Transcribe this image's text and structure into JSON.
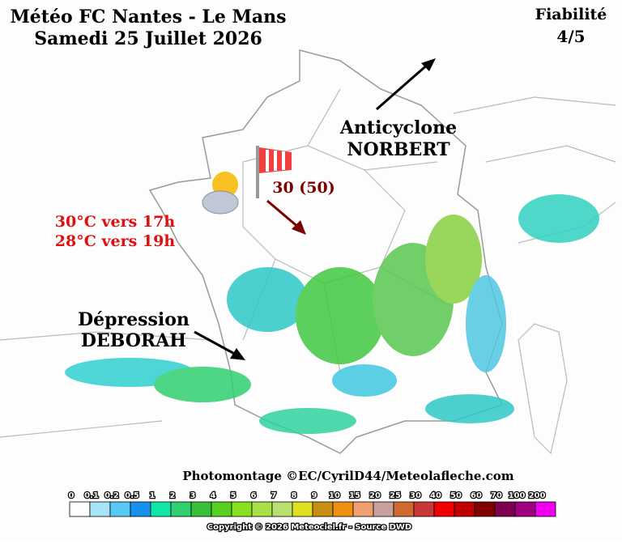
{
  "header": {
    "title": "Météo FC Nantes - Le Mans",
    "date": "Samedi 25 Juillet 2026",
    "reliability_label": "Fiabilité",
    "reliability": "4/5"
  },
  "annotations": {
    "anticyclone": [
      "Anticyclone",
      "NORBERT"
    ],
    "wind": "30 (50)",
    "temperatures": [
      "30°C vers 17h",
      "28°C vers 19h"
    ],
    "depression": [
      "Dépression",
      "DEBORAH"
    ]
  },
  "credits": {
    "photomontage": "Photomontage ©EC/CyrilD44/Meteolafleche.com",
    "copyright": "Copyright © 2026 Meteociel.fr - Source DWD"
  },
  "legend": {
    "labels": [
      0,
      0.1,
      0.2,
      0.5,
      1,
      2,
      3,
      4,
      5,
      6,
      7,
      8,
      9,
      10,
      15,
      20,
      25,
      30,
      40,
      50,
      60,
      70,
      100,
      200
    ],
    "colors": [
      "#ffffff",
      "#a8e4f8",
      "#58c8f4",
      "#1890f0",
      "#10e8a8",
      "#30d070",
      "#38c038",
      "#58d020",
      "#88e020",
      "#a8e048",
      "#b8e070",
      "#e0e020",
      "#c89010",
      "#f09010",
      "#f0a070",
      "#c8a0a0",
      "#d06830",
      "#c83838",
      "#f00000",
      "#c00000",
      "#800000",
      "#800050",
      "#a00080",
      "#f000f0"
    ]
  }
}
